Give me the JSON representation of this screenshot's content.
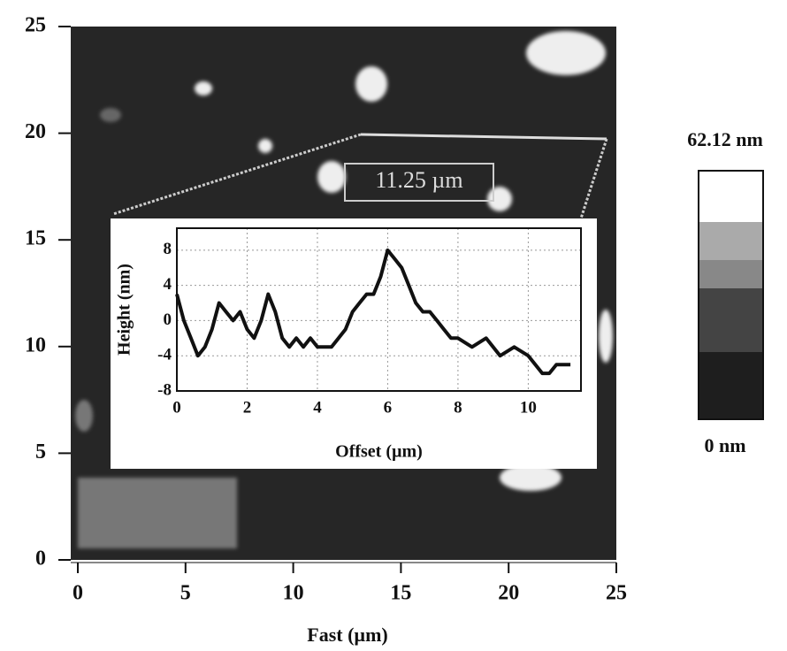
{
  "chart_data": [
    {
      "type": "image",
      "xlim": [
        0,
        25
      ],
      "ylim": [
        0,
        25
      ],
      "xticks": [
        0,
        5,
        10,
        15,
        20,
        25
      ],
      "yticks": [
        0,
        5,
        10,
        15,
        20,
        25
      ],
      "x_label": "Fast (µm)",
      "annotation": "11.25 µm",
      "colorbar": {
        "max_label": "62.12 nm",
        "min_label": "0 nm"
      }
    },
    {
      "type": "line",
      "x_label": "Offset (µm)",
      "y_label": "Height (nm)",
      "xlim": [
        0,
        11.5
      ],
      "ylim": [
        -8,
        10.5
      ],
      "xticks": [
        0,
        2,
        4,
        6,
        8,
        10
      ],
      "yticks": [
        -8,
        -4,
        0,
        4,
        8
      ],
      "grid": true,
      "color": "#111111",
      "x": [
        0,
        0.2,
        0.4,
        0.6,
        0.8,
        1.0,
        1.2,
        1.4,
        1.6,
        1.8,
        2.0,
        2.2,
        2.4,
        2.6,
        2.8,
        3.0,
        3.2,
        3.4,
        3.6,
        3.8,
        4.0,
        4.4,
        4.8,
        5.0,
        5.2,
        5.4,
        5.6,
        5.8,
        6.0,
        6.2,
        6.4,
        6.6,
        6.8,
        7.0,
        7.2,
        7.4,
        7.6,
        7.8,
        8.0,
        8.4,
        8.8,
        9.2,
        9.6,
        10.0,
        10.4,
        10.6,
        10.8,
        11.0,
        11.2
      ],
      "values": [
        3,
        0,
        -2,
        -4,
        -3,
        -1,
        2,
        1,
        0,
        1,
        -1,
        -2,
        0,
        3,
        1,
        -2,
        -3,
        -2,
        -3,
        -2,
        -3,
        -3,
        -1,
        1,
        2,
        3,
        3,
        5,
        8,
        7,
        6,
        4,
        2,
        1,
        1,
        0,
        -1,
        -2,
        -2,
        -3,
        -2,
        -4,
        -3,
        -4,
        -6,
        -6,
        -5,
        -5,
        -5
      ]
    }
  ]
}
